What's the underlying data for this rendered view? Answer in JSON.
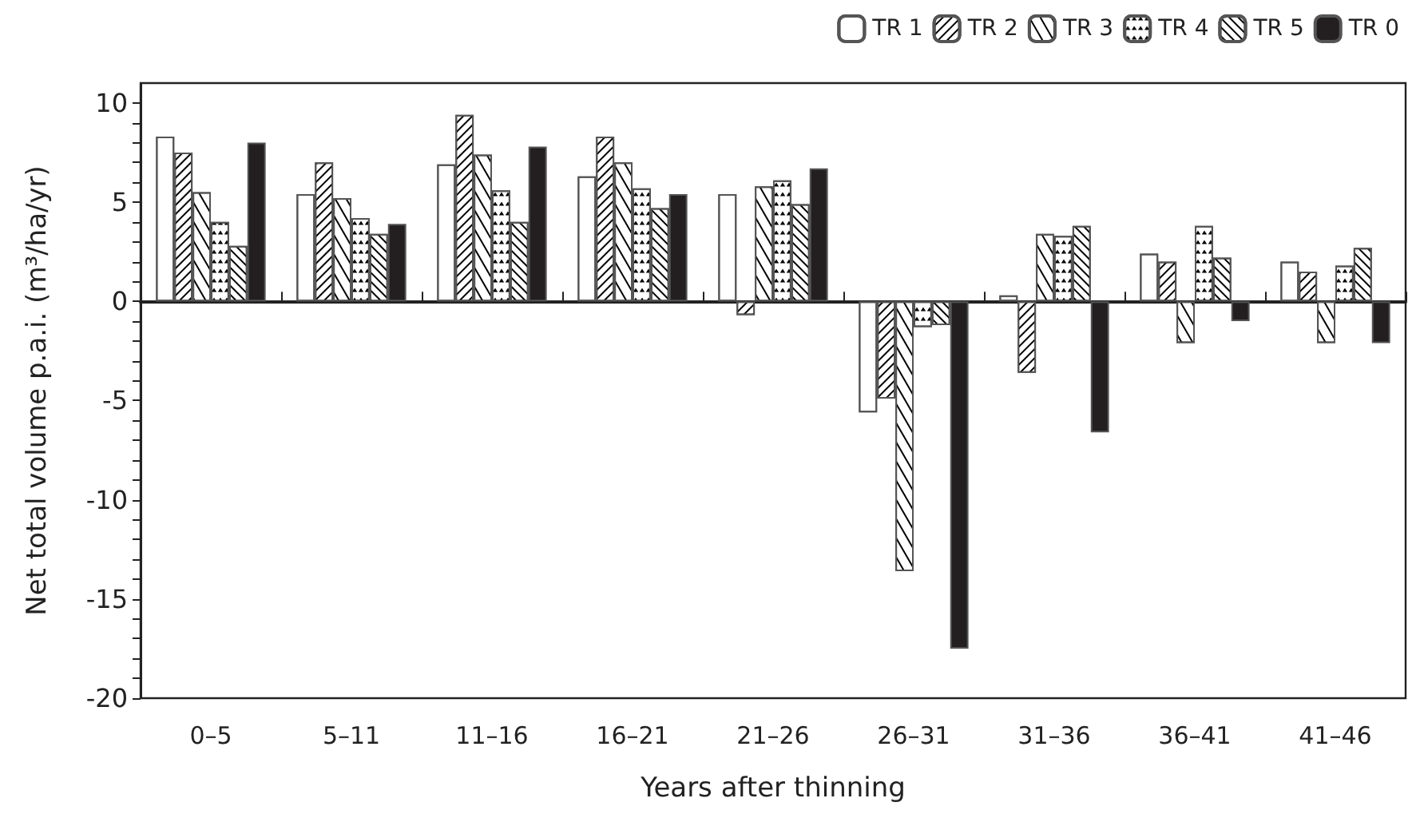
{
  "chart_data": {
    "type": "bar",
    "xlabel": "Years after thinning",
    "ylabel": "Net total volume p.a.i. (m³/ha/yr)",
    "categories": [
      "0–5",
      "5–11",
      "11–16",
      "16–21",
      "21–26",
      "26–31",
      "31–36",
      "36–41",
      "41–46"
    ],
    "series": [
      {
        "name": "TR 1",
        "color": "#ffffff",
        "values": [
          8.3,
          5.4,
          6.9,
          6.3,
          5.4,
          -5.6,
          0.3,
          2.4,
          2.0
        ]
      },
      {
        "name": "TR 2",
        "color": "#ffffff",
        "values": [
          7.5,
          7.0,
          9.4,
          8.3,
          -0.7,
          -4.9,
          -3.6,
          2.0,
          1.5
        ]
      },
      {
        "name": "TR 3",
        "color": "#ffffff",
        "values": [
          5.5,
          5.2,
          7.4,
          7.0,
          5.8,
          -13.6,
          3.4,
          -2.1,
          -2.1
        ]
      },
      {
        "name": "TR 4",
        "color": "#ffffff",
        "values": [
          4.0,
          4.2,
          5.6,
          5.7,
          6.1,
          -1.3,
          3.3,
          3.8,
          1.8
        ]
      },
      {
        "name": "TR 5",
        "color": "#ffffff",
        "values": [
          2.8,
          3.4,
          4.0,
          4.7,
          4.9,
          -1.2,
          3.8,
          2.2,
          2.7
        ]
      },
      {
        "name": "TR 0",
        "color": "#231f20",
        "values": [
          8.0,
          3.9,
          7.8,
          5.4,
          6.7,
          -17.5,
          -6.6,
          -1.0,
          -2.1
        ]
      }
    ],
    "ylim": [
      -20,
      11
    ],
    "yticks": [
      -20,
      {
        "value": -19,
        "label": null
      },
      {
        "value": -18,
        "label": null
      },
      {
        "value": -17,
        "label": null
      },
      {
        "value": -16,
        "label": null
      },
      -15,
      {
        "value": -14,
        "label": null
      },
      {
        "value": -13,
        "label": null
      },
      {
        "value": -12,
        "label": null
      },
      {
        "value": -11,
        "label": null
      },
      -10,
      {
        "value": -9,
        "label": null
      },
      {
        "value": -8,
        "label": null
      },
      {
        "value": -7,
        "label": null
      },
      {
        "value": -6,
        "label": null
      },
      -5,
      {
        "value": -4,
        "label": null
      },
      {
        "value": -3,
        "label": null
      },
      {
        "value": -2,
        "label": null
      },
      {
        "value": -1,
        "label": null
      },
      0,
      {
        "value": 1,
        "label": null
      },
      {
        "value": 2,
        "label": null
      },
      {
        "value": 3,
        "label": null
      },
      {
        "value": 4,
        "label": null
      },
      5,
      {
        "value": 6,
        "label": null
      },
      {
        "value": 7,
        "label": null
      },
      {
        "value": 8,
        "label": null
      },
      {
        "value": 9,
        "label": null
      },
      10
    ],
    "legend": "top right"
  }
}
